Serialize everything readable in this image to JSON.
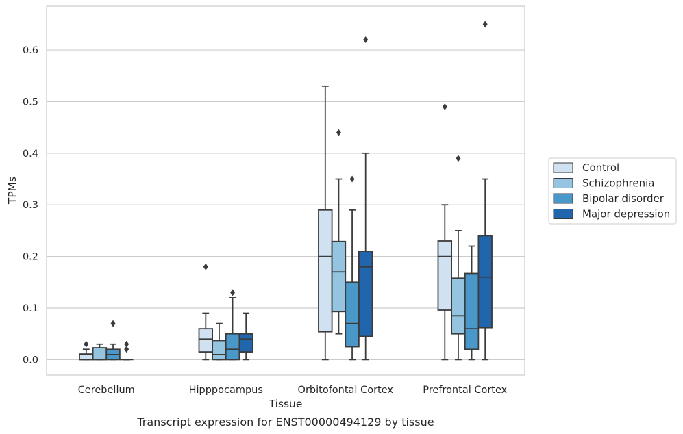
{
  "chart_data": {
    "type": "box",
    "title": "Transcript expression for ENST00000494129 by tissue",
    "xlabel": "Tissue",
    "ylabel": "TPMs",
    "ylim": [
      -0.03,
      0.685
    ],
    "yticks": [
      0.0,
      0.1,
      0.2,
      0.3,
      0.4,
      0.5,
      0.6
    ],
    "ytick_labels": [
      "0.0",
      "0.1",
      "0.2",
      "0.3",
      "0.4",
      "0.5",
      "0.6"
    ],
    "grid": "horizontal",
    "legend_position": "right",
    "categories": [
      "Cerebellum",
      "Hipppocampus",
      "Orbitofontal Cortex",
      "Prefrontal Cortex"
    ],
    "series": [
      {
        "name": "Control",
        "color": "#d0e1f2",
        "boxes": [
          {
            "whislo": 0.0,
            "q1": 0.0,
            "med": 0.0,
            "q3": 0.011,
            "whishi": 0.02,
            "fliers": [
              0.03
            ]
          },
          {
            "whislo": 0.0,
            "q1": 0.015,
            "med": 0.04,
            "q3": 0.06,
            "whishi": 0.09,
            "fliers": [
              0.18
            ]
          },
          {
            "whislo": 0.0,
            "q1": 0.054,
            "med": 0.2,
            "q3": 0.29,
            "whishi": 0.53,
            "fliers": []
          },
          {
            "whislo": 0.0,
            "q1": 0.096,
            "med": 0.2,
            "q3": 0.23,
            "whishi": 0.3,
            "fliers": [
              0.49
            ]
          }
        ]
      },
      {
        "name": "Schizophrenia",
        "color": "#94c4df",
        "boxes": [
          {
            "whislo": 0.0,
            "q1": 0.0,
            "med": 0.0,
            "q3": 0.023,
            "whishi": 0.03,
            "fliers": []
          },
          {
            "whislo": 0.0,
            "q1": 0.0,
            "med": 0.01,
            "q3": 0.037,
            "whishi": 0.07,
            "fliers": []
          },
          {
            "whislo": 0.05,
            "q1": 0.093,
            "med": 0.17,
            "q3": 0.229,
            "whishi": 0.35,
            "fliers": [
              0.44
            ]
          },
          {
            "whislo": 0.0,
            "q1": 0.05,
            "med": 0.085,
            "q3": 0.158,
            "whishi": 0.25,
            "fliers": [
              0.39
            ]
          }
        ]
      },
      {
        "name": "Bipolar disorder",
        "color": "#4a98c9",
        "boxes": [
          {
            "whislo": 0.0,
            "q1": 0.0,
            "med": 0.01,
            "q3": 0.02,
            "whishi": 0.03,
            "fliers": [
              0.07
            ]
          },
          {
            "whislo": 0.0,
            "q1": 0.0,
            "med": 0.02,
            "q3": 0.05,
            "whishi": 0.12,
            "fliers": [
              0.13
            ]
          },
          {
            "whislo": 0.0,
            "q1": 0.025,
            "med": 0.07,
            "q3": 0.15,
            "whishi": 0.29,
            "fliers": [
              0.35
            ]
          },
          {
            "whislo": 0.0,
            "q1": 0.02,
            "med": 0.06,
            "q3": 0.167,
            "whishi": 0.22,
            "fliers": []
          }
        ]
      },
      {
        "name": "Major depression",
        "color": "#2166ac",
        "boxes": [
          {
            "whislo": 0.0,
            "q1": 0.0,
            "med": 0.0,
            "q3": 0.0,
            "whishi": 0.0,
            "fliers": [
              0.02,
              0.03
            ]
          },
          {
            "whislo": 0.0,
            "q1": 0.015,
            "med": 0.04,
            "q3": 0.05,
            "whishi": 0.09,
            "fliers": []
          },
          {
            "whislo": 0.0,
            "q1": 0.045,
            "med": 0.18,
            "q3": 0.21,
            "whishi": 0.4,
            "fliers": [
              0.62
            ]
          },
          {
            "whislo": 0.0,
            "q1": 0.062,
            "med": 0.16,
            "q3": 0.24,
            "whishi": 0.35,
            "fliers": [
              0.65
            ]
          }
        ]
      }
    ]
  }
}
